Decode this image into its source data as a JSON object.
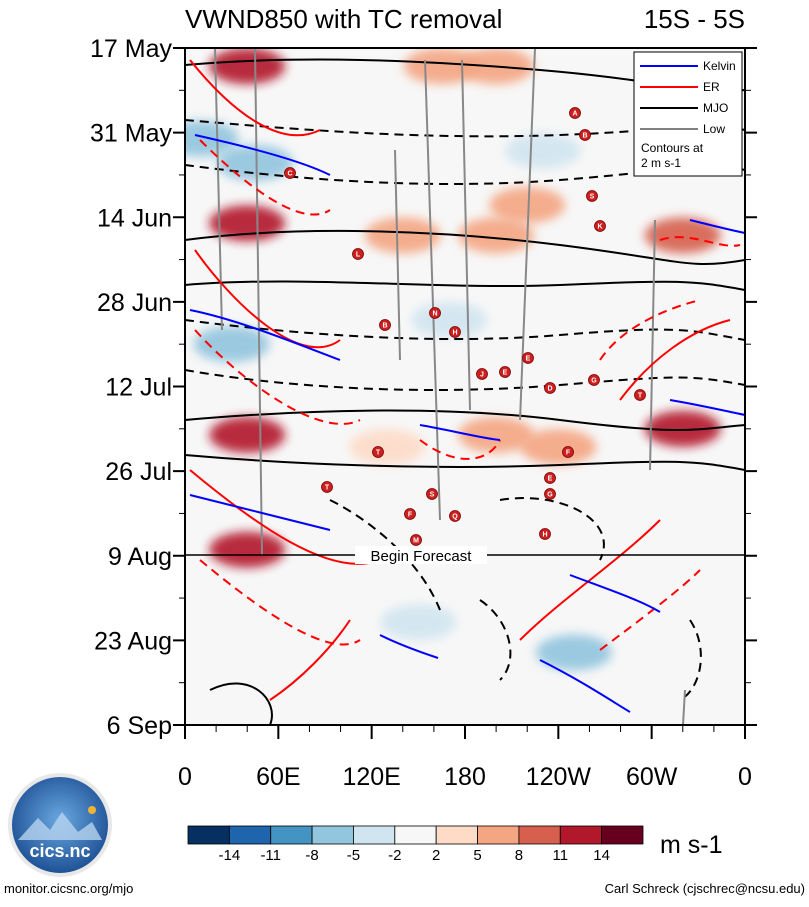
{
  "chart_data": {
    "type": "heatmap",
    "title": "VWND850 with TC removal",
    "lat_band": "15S - 5S",
    "y_labels": [
      "17 May",
      "31 May",
      "14 Jun",
      "28 Jun",
      "12 Jul",
      "26 Jul",
      "9 Aug",
      "23 Aug",
      "6 Sep"
    ],
    "x_labels": [
      "0",
      "60E",
      "120E",
      "180",
      "120W",
      "60W",
      "0"
    ],
    "forecast_label": "Begin Forecast",
    "units": "m s-1",
    "colorbar_ticks": [
      "-14",
      "-11",
      "-8",
      "-5",
      "-2",
      "2",
      "5",
      "8",
      "11",
      "14"
    ],
    "colorbar_colors": [
      "#053061",
      "#1f65ad",
      "#4393c3",
      "#92c5de",
      "#d1e5f0",
      "#f7f7f7",
      "#fddbc7",
      "#f4a582",
      "#d6604d",
      "#b2182b",
      "#67001f"
    ],
    "legend": [
      {
        "label": "Kelvin",
        "color": "#0000ff"
      },
      {
        "label": "ER",
        "color": "#ff0000"
      },
      {
        "label": "MJO",
        "color": "#000000"
      },
      {
        "label": "Low",
        "color": "#808080"
      }
    ],
    "legend_note": "Contours at 2 m s-1",
    "tc_markers": [
      "A",
      "B",
      "C",
      "S",
      "K",
      "L",
      "B",
      "N",
      "H",
      "J",
      "E",
      "E",
      "D",
      "G",
      "T",
      "T",
      "T",
      "F",
      "S",
      "E",
      "G",
      "F",
      "Q",
      "M",
      "H"
    ],
    "anomaly_blobs": [
      {
        "lon": 40,
        "date": "20 May",
        "value": 14
      },
      {
        "lon": 40,
        "date": "15 Jun",
        "value": 14
      },
      {
        "lon": 40,
        "date": "20 Jul",
        "value": 14
      },
      {
        "lon": 40,
        "date": "8 Aug",
        "value": 14
      },
      {
        "lon": 165,
        "date": "20 May",
        "value": 8
      },
      {
        "lon": 200,
        "date": "20 May",
        "value": 8
      },
      {
        "lon": 140,
        "date": "17 Jun",
        "value": 8
      },
      {
        "lon": 200,
        "date": "17 Jun",
        "value": 8
      },
      {
        "lon": 220,
        "date": "12 Jun",
        "value": 8
      },
      {
        "lon": 320,
        "date": "17 Jun",
        "value": 11
      },
      {
        "lon": 200,
        "date": "20 Jul",
        "value": 8
      },
      {
        "lon": 240,
        "date": "22 Jul",
        "value": 8
      },
      {
        "lon": 130,
        "date": "22 Jul",
        "value": 5
      },
      {
        "lon": 320,
        "date": "19 Jul",
        "value": 14
      },
      {
        "lon": 10,
        "date": "1 Jun",
        "value": -5
      },
      {
        "lon": 45,
        "date": "5 Jun",
        "value": -5
      },
      {
        "lon": 30,
        "date": "5 Jul",
        "value": -5
      },
      {
        "lon": 170,
        "date": "1 Jul",
        "value": -2
      },
      {
        "lon": 230,
        "date": "3 Jun",
        "value": -2
      },
      {
        "lon": 250,
        "date": "25 Aug",
        "value": -5
      },
      {
        "lon": 150,
        "date": "20 Aug",
        "value": -2
      }
    ]
  },
  "footer": {
    "left": "monitor.cicsnc.org/mjo",
    "right": "Carl Schreck (cjschrec@ncsu.edu)"
  },
  "logo": {
    "text": "cics.nc",
    "ring_text": "Cooperative Institute for Climate and Satellites"
  }
}
